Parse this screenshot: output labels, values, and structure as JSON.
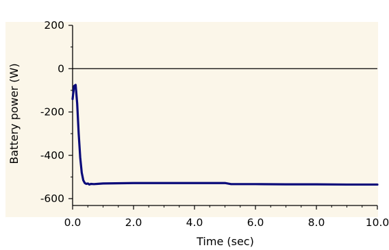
{
  "chart_data": {
    "type": "line",
    "title": "",
    "xlabel": "Time (sec)",
    "ylabel": "Battery power (W)",
    "xlim": [
      0,
      10
    ],
    "ylim": [
      -620,
      220
    ],
    "x_ticks": [
      "0.0",
      "2.0",
      "4.0",
      "6.0",
      "8.0",
      "10.0"
    ],
    "y_ticks": [
      "200",
      "0",
      "-200",
      "-400",
      "-600"
    ],
    "grid": false,
    "zero_line": true,
    "colors": {
      "series": "#0b0b7a",
      "zero_line": "#000000",
      "plot_background": "#fbf6e9"
    },
    "series": [
      {
        "x": [
          0.0,
          0.05,
          0.1,
          0.15,
          0.2,
          0.25,
          0.3,
          0.35,
          0.4,
          0.45,
          0.5,
          0.55,
          0.6,
          0.7,
          0.8,
          1.0,
          2.0,
          3.0,
          4.0,
          5.0,
          5.2,
          6.0,
          7.0,
          8.0,
          9.0,
          10.0
        ],
        "y": [
          -140,
          -80,
          -75,
          -160,
          -300,
          -410,
          -480,
          -515,
          -528,
          -532,
          -530,
          -535,
          -532,
          -533,
          -532,
          -530,
          -528,
          -528,
          -528,
          -528,
          -533,
          -533,
          -534,
          -534,
          -535,
          -535
        ]
      }
    ]
  }
}
